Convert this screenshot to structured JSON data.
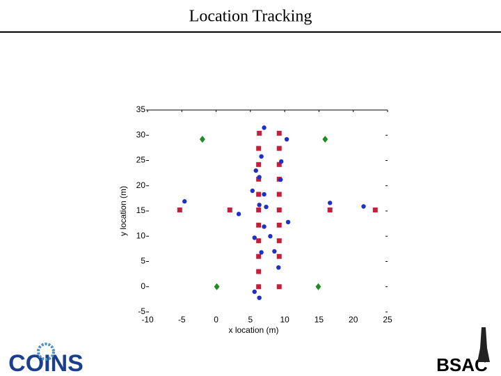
{
  "header": {
    "title": "Location Tracking"
  },
  "chart_data": {
    "type": "scatter",
    "xlabel": "x location (m)",
    "ylabel": "y location (m)",
    "xlim": [
      -10,
      25
    ],
    "ylim": [
      -5,
      35
    ],
    "xticks": [
      -10,
      -5,
      0,
      5,
      10,
      15,
      20,
      25
    ],
    "yticks": [
      -5,
      0,
      5,
      10,
      15,
      20,
      25,
      30,
      35
    ],
    "series": [
      {
        "marker": "square",
        "color": "#c41e3a",
        "x": [
          6.3,
          9.2,
          6.2,
          9.2,
          6.2,
          9.2,
          6.2,
          9.2,
          6.2,
          9.2,
          -5.3,
          2.0,
          6.2,
          9.2,
          16.6,
          23.2,
          6.2,
          9.2,
          6.2,
          9.2,
          6.2,
          9.2,
          6.2,
          6.2,
          9.2
        ],
        "values": [
          30.4,
          30.4,
          27.4,
          27.4,
          24.2,
          24.2,
          21.3,
          21.3,
          18.3,
          18.3,
          15.2,
          15.2,
          15.2,
          15.2,
          15.2,
          15.2,
          12.2,
          12.2,
          9.1,
          9.1,
          6.0,
          6.0,
          3.0,
          0,
          0
        ]
      },
      {
        "marker": "circle",
        "color": "#1f2fc8",
        "x": [
          7.0,
          10.3,
          6.6,
          9.5,
          5.8,
          6.3,
          9.4,
          5.3,
          7.0,
          -4.6,
          3.3,
          6.3,
          7.3,
          16.6,
          21.5,
          7.0,
          10.5,
          5.6,
          7.9,
          6.6,
          8.5,
          9.1,
          5.6,
          6.3
        ],
        "values": [
          31.5,
          29.2,
          25.8,
          24.8,
          23.0,
          21.7,
          21.2,
          19.0,
          18.3,
          16.9,
          14.4,
          16.2,
          15.8,
          16.6,
          15.9,
          11.9,
          12.8,
          9.7,
          10.0,
          6.8,
          7.0,
          3.8,
          -1.0,
          -2.2
        ]
      },
      {
        "marker": "diamond",
        "color": "#1e8c1e",
        "x": [
          -2.0,
          15.9,
          0.1,
          14.9
        ],
        "values": [
          29.2,
          29.2,
          0,
          0
        ]
      }
    ]
  },
  "logos": {
    "left": "COINS",
    "right": "BSAC"
  }
}
